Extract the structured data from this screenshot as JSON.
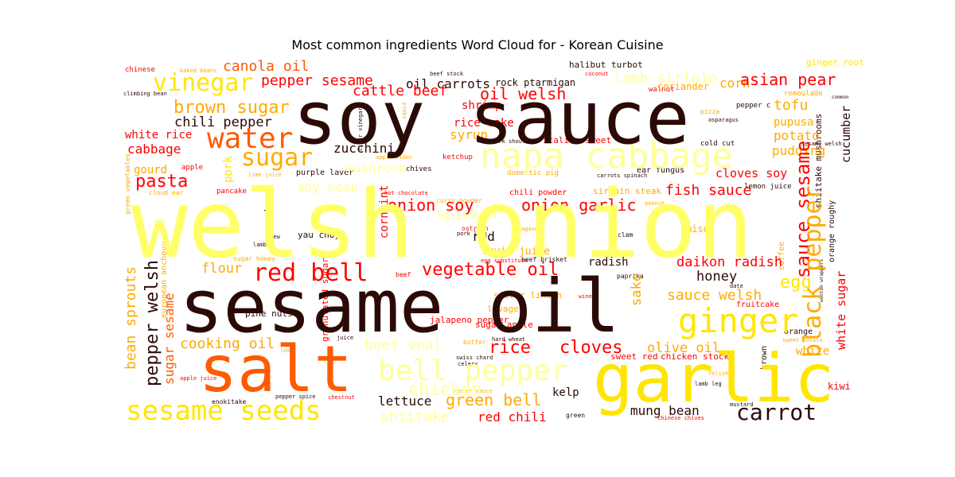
{
  "title": "Most common ingredients Word Cloud for - Korean Cuisine",
  "chart_data": {
    "type": "wordcloud",
    "title": "Most common ingredients Word Cloud for - Korean Cuisine",
    "palette": [
      "#2b0a05",
      "#ff0000",
      "#ff5a00",
      "#ffaa00",
      "#ffe600",
      "#ffff66",
      "#ffff99"
    ],
    "words": [
      {
        "text": "welsh onion",
        "weight": 100,
        "color": "#ffff66"
      },
      {
        "text": "soy sauce",
        "weight": 96,
        "color": "#2b0a05"
      },
      {
        "text": "sesame oil",
        "weight": 92,
        "color": "#2b0a05"
      },
      {
        "text": "garlic",
        "weight": 80,
        "color": "#ffe600"
      },
      {
        "text": "salt",
        "weight": 76,
        "color": "#ff5a00"
      },
      {
        "text": "napa cabbage",
        "weight": 48,
        "color": "#ffff99"
      },
      {
        "text": "water",
        "weight": 40,
        "color": "#ff5a00"
      },
      {
        "text": "sesame seeds",
        "weight": 40,
        "color": "#ffe600"
      },
      {
        "text": "bell pepper",
        "weight": 40,
        "color": "#ffff99"
      },
      {
        "text": "ginger",
        "weight": 38,
        "color": "#ffe600"
      },
      {
        "text": "red bell",
        "weight": 35,
        "color": "#ff0000"
      },
      {
        "text": "vinegar",
        "weight": 34,
        "color": "#ffe600"
      },
      {
        "text": "sugar",
        "weight": 32,
        "color": "#ffaa00"
      },
      {
        "text": "black pepper",
        "weight": 32,
        "color": "#ffaa00"
      },
      {
        "text": "carrot",
        "weight": 28,
        "color": "#2b0a05"
      },
      {
        "text": "sauce sesame",
        "weight": 26,
        "color": "#ff0000"
      },
      {
        "text": "pasta",
        "weight": 24,
        "color": "#ff0000"
      },
      {
        "text": "vegetable oil",
        "weight": 24,
        "color": "#ff0000"
      },
      {
        "text": "rice",
        "weight": 24,
        "color": "#ff0000"
      },
      {
        "text": "cloves",
        "weight": 24,
        "color": "#ff0000"
      },
      {
        "text": "chicken",
        "weight": 24,
        "color": "#ffff99"
      },
      {
        "text": "pepper welsh",
        "weight": 23,
        "color": "#2b0a05"
      },
      {
        "text": "egg",
        "weight": 22,
        "color": "#ffe600"
      },
      {
        "text": "brown sugar",
        "weight": 22,
        "color": "#ffaa00"
      },
      {
        "text": "asian pear",
        "weight": 22,
        "color": "#ff0000"
      },
      {
        "text": "oil welsh",
        "weight": 20,
        "color": "#ff0000"
      },
      {
        "text": "green bell",
        "weight": 20,
        "color": "#ffaa00"
      },
      {
        "text": "onion soy",
        "weight": 20,
        "color": "#ff0000"
      },
      {
        "text": "onion garlic",
        "weight": 20,
        "color": "#ff0000"
      },
      {
        "text": "bean sprouts",
        "weight": 20,
        "color": "#ffaa00"
      },
      {
        "text": "pepper sesame",
        "weight": 20,
        "color": "#ff0000"
      },
      {
        "text": "cattle beef",
        "weight": 20,
        "color": "#ff0000"
      },
      {
        "text": "canola oil",
        "weight": 18,
        "color": "#ff5a00"
      },
      {
        "text": "lamb sirloin",
        "weight": 18,
        "color": "#ffff99"
      },
      {
        "text": "sauce welsh",
        "weight": 18,
        "color": "#ffaa00"
      },
      {
        "text": "beef veal",
        "weight": 18,
        "color": "#ffff99"
      },
      {
        "text": "tofu",
        "weight": 18,
        "color": "#ffaa00"
      },
      {
        "text": "shiitake",
        "weight": 18,
        "color": "#ffff99"
      },
      {
        "text": "fish sauce",
        "weight": 18,
        "color": "#ff0000"
      },
      {
        "text": "cooking oil",
        "weight": 18,
        "color": "#ffaa00"
      },
      {
        "text": "mung bean",
        "weight": 18,
        "color": "#2b0a05"
      },
      {
        "text": "sugar sesame",
        "weight": 18,
        "color": "#ff5a00"
      },
      {
        "text": "red chili",
        "weight": 18,
        "color": "#ff0000"
      },
      {
        "text": "spinach",
        "weight": 18,
        "color": "#ffff99"
      },
      {
        "text": "chili pepper",
        "weight": 17,
        "color": "#2b0a05"
      },
      {
        "text": "daikon radish",
        "weight": 17,
        "color": "#ff0000"
      },
      {
        "text": "honey",
        "weight": 17,
        "color": "#2b0a05"
      },
      {
        "text": "sake",
        "weight": 17,
        "color": "#ffaa00"
      },
      {
        "text": "flour",
        "weight": 17,
        "color": "#ffaa00"
      },
      {
        "text": "olive oil",
        "weight": 17,
        "color": "#ffaa00"
      },
      {
        "text": "cabbage",
        "weight": 16,
        "color": "#ff0000"
      },
      {
        "text": "zucchini",
        "weight": 16,
        "color": "#2b0a05"
      },
      {
        "text": "mushroom",
        "weight": 16,
        "color": "#ffff99"
      },
      {
        "text": "soy bean",
        "weight": 16,
        "color": "#ffff99"
      },
      {
        "text": "oil carrots",
        "weight": 16,
        "color": "#2b0a05"
      },
      {
        "text": "pudding",
        "weight": 16,
        "color": "#ffaa00"
      },
      {
        "text": "potato",
        "weight": 16,
        "color": "#ffaa00"
      },
      {
        "text": "lettuce",
        "weight": 16,
        "color": "#2b0a05"
      },
      {
        "text": "corn",
        "weight": 15,
        "color": "#ffaa00"
      },
      {
        "text": "syrup",
        "weight": 15,
        "color": "#ffaa00"
      },
      {
        "text": "cloves soy",
        "weight": 15,
        "color": "#ff0000"
      },
      {
        "text": "kelp",
        "weight": 15,
        "color": "#2b0a05"
      },
      {
        "text": "radish",
        "weight": 15,
        "color": "#2b0a05"
      },
      {
        "text": "red",
        "weight": 15,
        "color": "#2b0a05"
      },
      {
        "text": "wheat",
        "weight": 15,
        "color": "#2b0a05"
      },
      {
        "text": "cucumber",
        "weight": 15,
        "color": "#2b0a05"
      },
      {
        "text": "white sugar",
        "weight": 15,
        "color": "#ff0000"
      },
      {
        "text": "rice cake",
        "weight": 14,
        "color": "#ff0000"
      },
      {
        "text": "shrimp",
        "weight": 14,
        "color": "#ff0000"
      },
      {
        "text": "white rice",
        "weight": 14,
        "color": "#ff0000"
      },
      {
        "text": "pupusa",
        "weight": 14,
        "color": "#ffaa00"
      },
      {
        "text": "fruit juice",
        "weight": 14,
        "color": "#ffaa00"
      },
      {
        "text": "gourd",
        "weight": 14,
        "color": "#ffaa00"
      },
      {
        "text": "white",
        "weight": 14,
        "color": "#ffaa00"
      },
      {
        "text": "cornmint",
        "weight": 14,
        "color": "#ff0000"
      },
      {
        "text": "pork",
        "weight": 14,
        "color": "#ffe600"
      },
      {
        "text": "miso",
        "weight": 12,
        "color": "#ffaa00"
      },
      {
        "text": "coriander",
        "weight": 12,
        "color": "#ffaa00"
      },
      {
        "text": "rock ptarmigan",
        "weight": 12,
        "color": "#2b0a05"
      },
      {
        "text": "kiwi",
        "weight": 12,
        "color": "#ff0000"
      },
      {
        "text": "shiitake mushrooms",
        "weight": 11,
        "color": "#2b0a05"
      },
      {
        "text": "granulated sugar",
        "weight": 10,
        "color": "#ff0000"
      },
      {
        "text": "european anchovy",
        "weight": 10,
        "color": "#ffaa00"
      },
      {
        "text": "chicken stock",
        "weight": 11,
        "color": "#ff0000"
      },
      {
        "text": "sweet red",
        "weight": 11,
        "color": "#ff0000"
      },
      {
        "text": "halibut turbot",
        "weight": 11,
        "color": "#2b0a05"
      },
      {
        "text": "italian sweet",
        "weight": 11,
        "color": "#ff0000"
      },
      {
        "text": "ginger root",
        "weight": 11,
        "color": "#ffe600"
      },
      {
        "text": "silver linden",
        "weight": 11,
        "color": "#ffaa00"
      },
      {
        "text": "lovage",
        "weight": 11,
        "color": "#ffaa00"
      },
      {
        "text": "jalapeno pepper",
        "weight": 11,
        "color": "#ff0000"
      },
      {
        "text": "yau choy",
        "weight": 11,
        "color": "#2b0a05"
      },
      {
        "text": "pine nuts",
        "weight": 11,
        "color": "#2b0a05"
      },
      {
        "text": "sugar apple",
        "weight": 11,
        "color": "#ff0000"
      },
      {
        "text": "sirloin steak",
        "weight": 11,
        "color": "#ffaa00"
      },
      {
        "text": "purple laver",
        "weight": 10,
        "color": "#2b0a05"
      },
      {
        "text": "chili powder",
        "weight": 10,
        "color": "#ff0000"
      },
      {
        "text": "ear fungus",
        "weight": 10,
        "color": "#2b0a05"
      },
      {
        "text": "fruitcake",
        "weight": 10,
        "color": "#ff0000"
      },
      {
        "text": "orange roughy",
        "weight": 10,
        "color": "#2b0a05"
      },
      {
        "text": "coffee",
        "weight": 10,
        "color": "#ffaa00"
      },
      {
        "text": "orange",
        "weight": 10,
        "color": "#2b0a05"
      },
      {
        "text": "brown",
        "weight": 10,
        "color": "#2b0a05"
      },
      {
        "text": "green vegetables",
        "weight": 8,
        "color": "#ffaa00"
      },
      {
        "text": "lemon juice",
        "weight": 9,
        "color": "#2b0a05"
      },
      {
        "text": "ketchup",
        "weight": 9,
        "color": "#ff0000"
      },
      {
        "text": "chives",
        "weight": 9,
        "color": "#2b0a05"
      },
      {
        "text": "pancake",
        "weight": 9,
        "color": "#ff0000"
      },
      {
        "text": "apple",
        "weight": 9,
        "color": "#ff0000"
      },
      {
        "text": "chinese",
        "weight": 9,
        "color": "#ff0000"
      },
      {
        "text": "walnut",
        "weight": 9,
        "color": "#ff0000"
      },
      {
        "text": "remoulade",
        "weight": 9,
        "color": "#ffaa00"
      },
      {
        "text": "pepper c",
        "weight": 9,
        "color": "#2b0a05"
      },
      {
        "text": "cold cut",
        "weight": 9,
        "color": "#2b0a05"
      },
      {
        "text": "domestic pig",
        "weight": 9,
        "color": "#ffaa00"
      },
      {
        "text": "sugar honey",
        "weight": 8,
        "color": "#ffaa00"
      },
      {
        "text": "beef",
        "weight": 8,
        "color": "#ff0000"
      },
      {
        "text": "beef brisket",
        "weight": 8,
        "color": "#2b0a05"
      },
      {
        "text": "butter",
        "weight": 8,
        "color": "#ffaa00"
      },
      {
        "text": "ostrich",
        "weight": 8,
        "color": "#ff0000"
      },
      {
        "text": "clam",
        "weight": 8,
        "color": "#2b0a05"
      },
      {
        "text": "paprika",
        "weight": 8,
        "color": "#2b0a05"
      },
      {
        "text": "hard wheat",
        "weight": 7,
        "color": "#2b0a05"
      },
      {
        "text": "green",
        "weight": 8,
        "color": "#2b0a05"
      },
      {
        "text": "chinese chives",
        "weight": 7,
        "color": "#ff0000"
      },
      {
        "text": "mustard",
        "weight": 7,
        "color": "#2b0a05"
      },
      {
        "text": "lamb leg",
        "weight": 7,
        "color": "#2b0a05"
      },
      {
        "text": "enokitake",
        "weight": 8,
        "color": "#2b0a05"
      },
      {
        "text": "pepper spice",
        "weight": 7,
        "color": "#2b0a05"
      },
      {
        "text": "chestnut",
        "weight": 7,
        "color": "#ff0000"
      },
      {
        "text": "apple juice",
        "weight": 7,
        "color": "#ff0000"
      },
      {
        "text": "swiss chard",
        "weight": 7,
        "color": "#2b0a05"
      },
      {
        "text": "celery",
        "weight": 7,
        "color": "#2b0a05"
      },
      {
        "text": "oyster sauce",
        "weight": 7,
        "color": "#ffaa00"
      },
      {
        "text": "egg substitute",
        "weight": 7,
        "color": "#ff0000"
      },
      {
        "text": "pork loin",
        "weight": 7,
        "color": "#2b0a05"
      },
      {
        "text": "climbing bean",
        "weight": 7,
        "color": "#2b0a05"
      },
      {
        "text": "baked beans",
        "weight": 7,
        "color": "#ffaa00"
      },
      {
        "text": "beef stock",
        "weight": 7,
        "color": "#2b0a05"
      },
      {
        "text": "coconut",
        "weight": 7,
        "color": "#ff0000"
      },
      {
        "text": "asparagus",
        "weight": 7,
        "color": "#2b0a05"
      },
      {
        "text": "pizza",
        "weight": 8,
        "color": "#ffaa00"
      },
      {
        "text": "carrots spinach",
        "weight": 7,
        "color": "#2b0a05"
      },
      {
        "text": "pork shoulder",
        "weight": 7,
        "color": "#2b0a05"
      },
      {
        "text": "cider vinegar",
        "weight": 7,
        "color": "#2b0a05"
      },
      {
        "text": "lime juice",
        "weight": 7,
        "color": "#ffaa00"
      },
      {
        "text": "cloud ear",
        "weight": 8,
        "color": "#ffaa00"
      },
      {
        "text": "hot chocolate",
        "weight": 7,
        "color": "#ff0000"
      },
      {
        "text": "curry powder",
        "weight": 8,
        "color": "#ffaa00"
      },
      {
        "text": "peanut",
        "weight": 7,
        "color": "#ffaa00"
      },
      {
        "text": "agave",
        "weight": 7,
        "color": "#ffaa00"
      },
      {
        "text": "stew",
        "weight": 7,
        "color": "#2b0a05"
      },
      {
        "text": "lamb",
        "weight": 7,
        "color": "#2b0a05"
      },
      {
        "text": "wine",
        "weight": 7,
        "color": "#ff0000"
      },
      {
        "text": "date",
        "weight": 7,
        "color": "#2b0a05"
      },
      {
        "text": "relish",
        "weight": 7,
        "color": "#ffaa00"
      },
      {
        "text": "look",
        "weight": 7,
        "color": "#ffaa00"
      },
      {
        "text": "juice",
        "weight": 7,
        "color": "#2b0a05"
      },
      {
        "text": "sesame welsh",
        "weight": 7,
        "color": "#2b0a05"
      },
      {
        "text": "wonton wrappers",
        "weight": 6,
        "color": "#2b0a05"
      },
      {
        "text": "squid",
        "weight": 7,
        "color": "#ffaa00"
      },
      {
        "text": "apple cider",
        "weight": 7,
        "color": "#ffaa00"
      },
      {
        "text": "common",
        "weight": 6,
        "color": "#2b0a05"
      },
      {
        "text": "sweet potato",
        "weight": 7,
        "color": "#ffaa00"
      }
    ]
  }
}
